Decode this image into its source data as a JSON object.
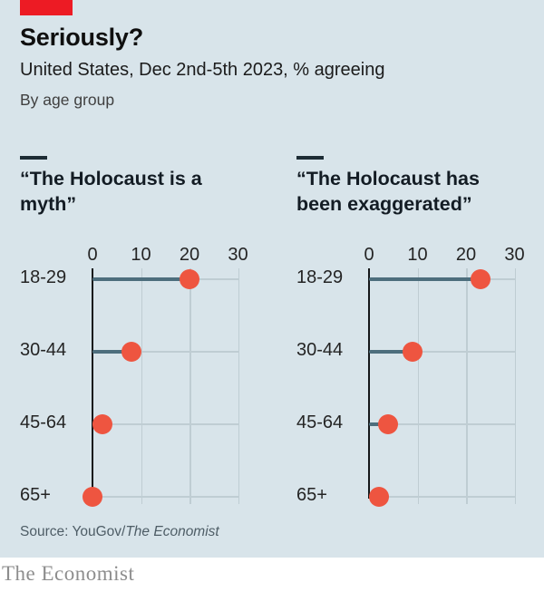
{
  "header": {
    "title": "Seriously?",
    "subtitle": "United States, Dec 2nd-5th 2023, % agreeing",
    "byline": "By age group"
  },
  "source": {
    "prefix": "Source: YouGov/",
    "publication": "The Economist"
  },
  "footer": {
    "brand": "The Economist"
  },
  "colors": {
    "background": "#d8e4ea",
    "accent_red": "#ed1b24",
    "dot": "#ee5540",
    "stem": "#4d6e7d",
    "grid": "#bfcdd3",
    "axis": "#15181a"
  },
  "chart_data": [
    {
      "type": "scatter",
      "variant": "lollipop",
      "title": "“The Holocaust is a myth”",
      "categories": [
        "18-29",
        "30-44",
        "45-64",
        "65+"
      ],
      "values": [
        20,
        8,
        2,
        0
      ],
      "xlabel": "",
      "ylabel": "",
      "unit": "% agreeing",
      "xlim": [
        0,
        30
      ],
      "xticks": [
        0,
        10,
        20,
        30
      ],
      "grid": true,
      "legend": "none"
    },
    {
      "type": "scatter",
      "variant": "lollipop",
      "title": "“The Holocaust has been exaggerated”",
      "categories": [
        "18-29",
        "30-44",
        "45-64",
        "65+"
      ],
      "values": [
        23,
        9,
        4,
        2
      ],
      "xlabel": "",
      "ylabel": "",
      "unit": "% agreeing",
      "xlim": [
        0,
        30
      ],
      "xticks": [
        0,
        10,
        20,
        30
      ],
      "grid": true,
      "legend": "none"
    }
  ]
}
